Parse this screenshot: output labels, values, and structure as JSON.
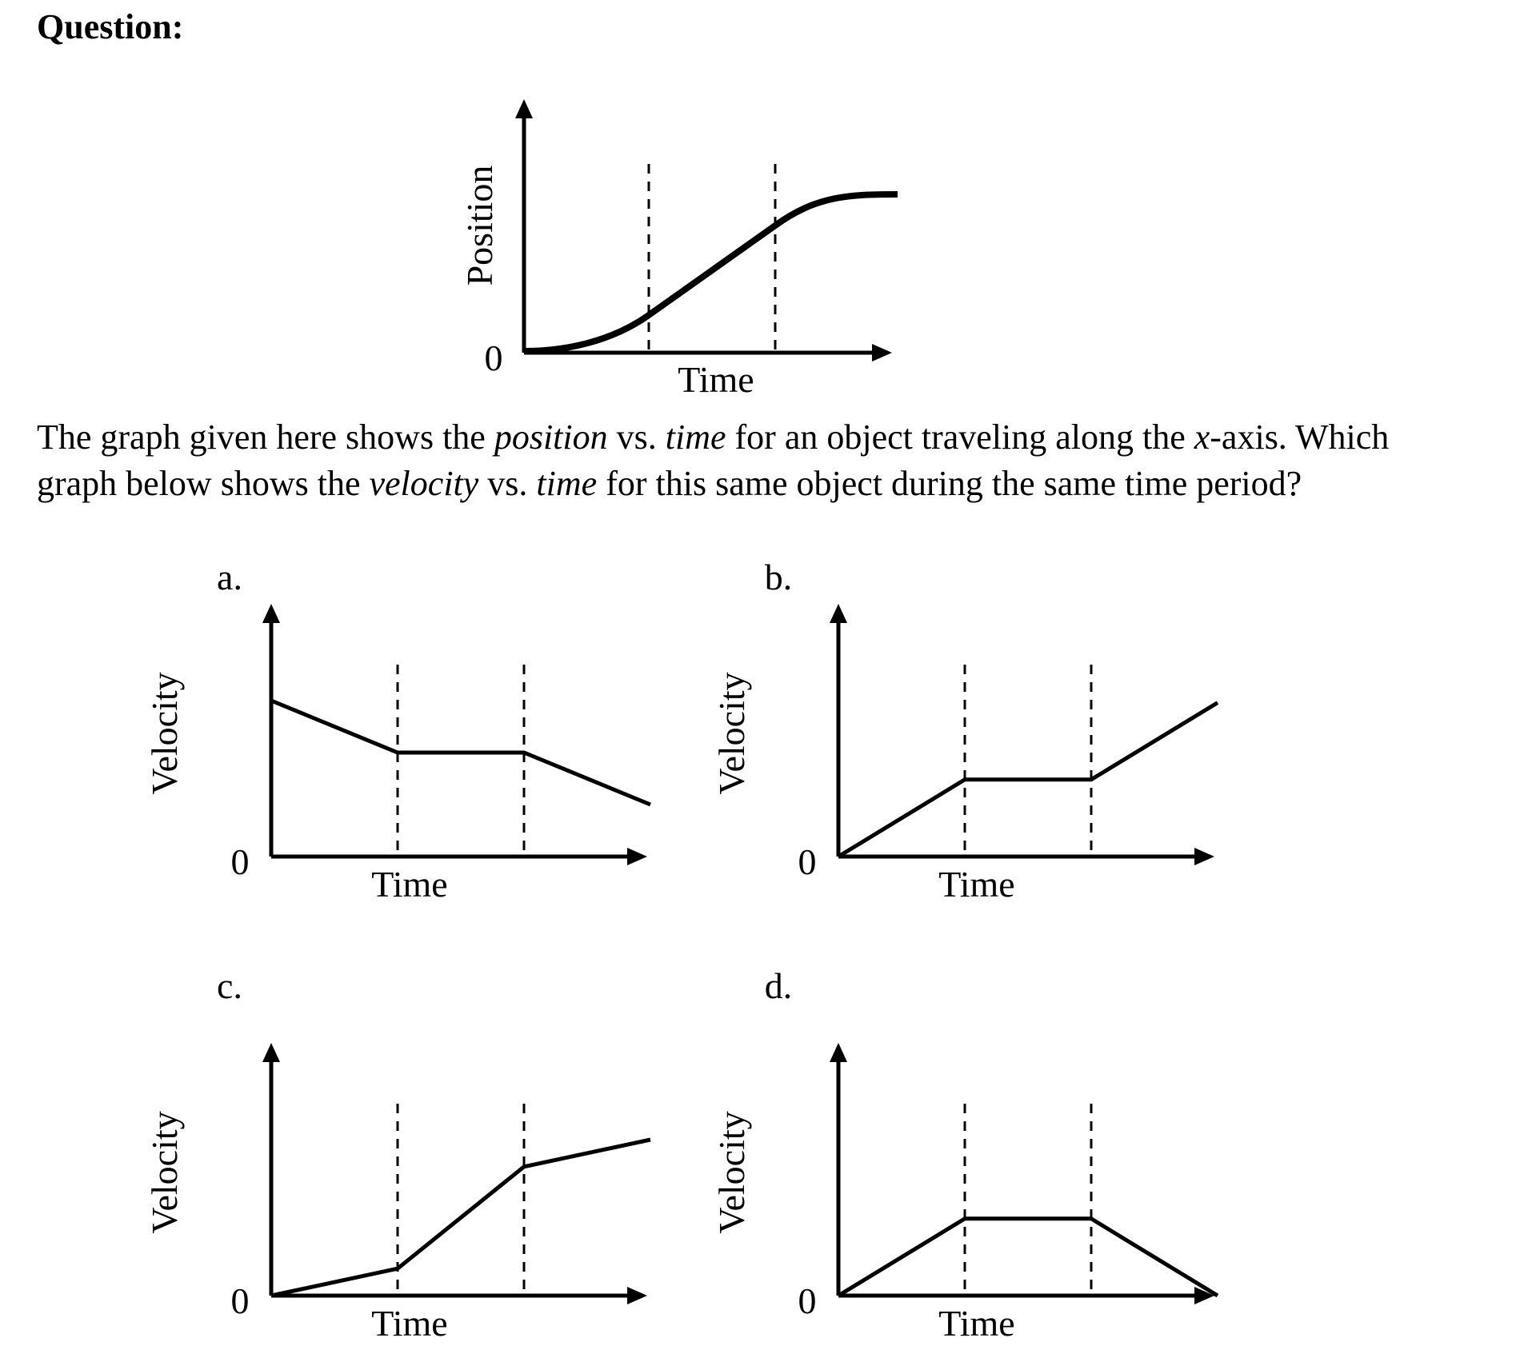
{
  "heading": "Question:",
  "stem": {
    "p1": "The graph given here shows the ",
    "position_word": "position",
    "p2": " vs. ",
    "time_word_1": "time",
    "p3": " for an object traveling along the ",
    "x_word": "x",
    "p4": "-axis. Which graph below shows the ",
    "velocity_word": "velocity",
    "p5": " vs. ",
    "time_word_2": "time",
    "p6": " for this same object during the same time period?"
  },
  "main_graph": {
    "y_label": "Position",
    "x_label": "Time",
    "origin_label": "0",
    "curve": "slow increasing, then constant slope, then leveling off"
  },
  "options": [
    {
      "letter": "a.",
      "y_label": "Velocity",
      "x_label": "Time",
      "origin_label": "0",
      "segments": [
        [
          0,
          0.75
        ],
        [
          1,
          0.5
        ],
        [
          2,
          0.5
        ],
        [
          3,
          0.25
        ]
      ]
    },
    {
      "letter": "b.",
      "y_label": "Velocity",
      "x_label": "Time",
      "origin_label": "0",
      "segments": [
        [
          0,
          0
        ],
        [
          1,
          0.37
        ],
        [
          2,
          0.37
        ],
        [
          3,
          0.74
        ]
      ]
    },
    {
      "letter": "c.",
      "y_label": "Velocity",
      "x_label": "Time",
      "origin_label": "0",
      "segments": [
        [
          0,
          0
        ],
        [
          1,
          0.13
        ],
        [
          2,
          0.62
        ],
        [
          3,
          0.75
        ]
      ]
    },
    {
      "letter": "d.",
      "y_label": "Velocity",
      "x_label": "Time",
      "origin_label": "0",
      "segments": [
        [
          0,
          0
        ],
        [
          1,
          0.37
        ],
        [
          2,
          0.37
        ],
        [
          3,
          0
        ]
      ]
    }
  ]
}
